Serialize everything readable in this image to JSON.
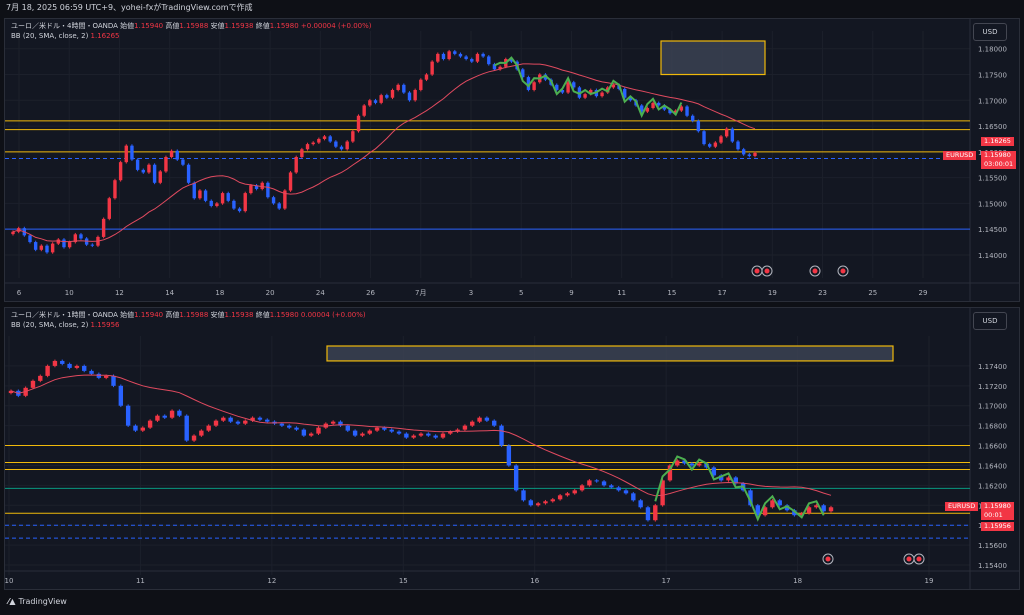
{
  "header": {
    "title": "7月 18, 2025 06:59 UTC+9、yohei-fxがTradingView.comで作成"
  },
  "panel1": {
    "legend": {
      "symbol": "ユーロ／米ドル・4時間・OANDA",
      "o_label": "始値",
      "o": "1.15940",
      "h_label": "高値",
      "h": "1.15988",
      "l_label": "安値",
      "l": "1.15938",
      "c_label": "終値",
      "c": "1.15980",
      "chg": "+0.00004 (+0.00%)",
      "bb_label": "BB (20, SMA, close, 2)",
      "bb_val": "1.16265"
    },
    "currency": "USD",
    "symbol_tag": "EURUSD",
    "price_tag": "1.15980",
    "timer_tag": "03:00:01",
    "bb_tag": "1.16265"
  },
  "panel2": {
    "legend": {
      "symbol": "ユーロ／米ドル・1時間・OANDA",
      "o_label": "始値",
      "o": "1.15940",
      "h_label": "高値",
      "h": "1.15988",
      "l_label": "安値",
      "l": "1.15938",
      "c_label": "終値",
      "c": "1.15980",
      "chg": "0.00004 (+0.00%)",
      "bb_label": "BB (20, SMA, close, 2)",
      "bb_val": "1.15956"
    },
    "currency": "USD",
    "symbol_tag": "EURUSD",
    "price_tag": "1.15980",
    "timer_tag": "00:01",
    "bb_tag": "1.15956"
  },
  "footer": {
    "brand": "TradingView"
  },
  "colors": {
    "up": "#f23645",
    "down": "#2962ff",
    "bb": "#e04a5f",
    "level": "#f0b90b",
    "zigzag": "#4caf50",
    "support": "#2962ff"
  },
  "chart_data": [
    {
      "type": "candlestick",
      "title": "EURUSD 4H",
      "ylim": [
        1.1365,
        1.1815
      ],
      "yticks": [
        "1.18000",
        "1.17500",
        "1.17000",
        "1.16500",
        "1.16000",
        "1.15500",
        "1.15000",
        "1.14500",
        "1.14000"
      ],
      "xticks": [
        "6",
        "10",
        "12",
        "14",
        "18",
        "20",
        "24",
        "26",
        "7月",
        "3",
        "5",
        "9",
        "11",
        "15",
        "17",
        "19",
        "23",
        "25",
        "29"
      ],
      "levels": [
        1.166,
        1.1643,
        1.16
      ],
      "dashed_levels": [
        1.1587
      ],
      "support_levels": [
        1.145
      ],
      "zone": {
        "from": 1.175,
        "to": 1.1815
      },
      "closes": [
        1.1445,
        1.1452,
        1.1438,
        1.1425,
        1.141,
        1.1418,
        1.1405,
        1.1422,
        1.143,
        1.1415,
        1.1425,
        1.144,
        1.1432,
        1.142,
        1.1418,
        1.1435,
        1.147,
        1.151,
        1.1545,
        1.158,
        1.1612,
        1.1585,
        1.1565,
        1.156,
        1.1575,
        1.154,
        1.1562,
        1.159,
        1.1602,
        1.1585,
        1.1575,
        1.154,
        1.151,
        1.1525,
        1.1505,
        1.1495,
        1.15,
        1.152,
        1.1505,
        1.149,
        1.1485,
        1.152,
        1.1535,
        1.1528,
        1.154,
        1.1512,
        1.15,
        1.149,
        1.1525,
        1.156,
        1.159,
        1.1605,
        1.1615,
        1.1618,
        1.1625,
        1.163,
        1.162,
        1.161,
        1.1605,
        1.162,
        1.164,
        1.167,
        1.169,
        1.17,
        1.1695,
        1.171,
        1.1705,
        1.172,
        1.173,
        1.1715,
        1.17,
        1.172,
        1.174,
        1.175,
        1.1775,
        1.179,
        1.178,
        1.1795,
        1.179,
        1.1785,
        1.178,
        1.1775,
        1.179,
        1.1785,
        1.177,
        1.176,
        1.1765,
        1.178,
        1.1775,
        1.176,
        1.1745,
        1.172,
        1.1735,
        1.175,
        1.174,
        1.173,
        1.172,
        1.1715,
        1.1735,
        1.1725,
        1.1705,
        1.1712,
        1.172,
        1.1708,
        1.1715,
        1.1725,
        1.173,
        1.1722,
        1.1705,
        1.17,
        1.169,
        1.1678,
        1.1685,
        1.1695,
        1.169,
        1.1682,
        1.1675,
        1.168,
        1.1688,
        1.167,
        1.166,
        1.164,
        1.1615,
        1.161,
        1.1618,
        1.163,
        1.1645,
        1.162,
        1.1605,
        1.1595,
        1.1592,
        1.1598
      ]
    },
    {
      "type": "candlestick",
      "title": "EURUSD 1H",
      "ylim": [
        1.1535,
        1.176
      ],
      "yticks": [
        "1.17400",
        "1.17200",
        "1.17000",
        "1.16800",
        "1.16600",
        "1.16400",
        "1.16200",
        "1.16000",
        "1.15800",
        "1.15600",
        "1.15400"
      ],
      "xticks": [
        "10",
        "11",
        "12",
        "15",
        "16",
        "17",
        "18",
        "19"
      ],
      "levels": [
        1.166,
        1.1643,
        1.1636,
        1.1592
      ],
      "dashed_levels": [
        1.158,
        1.1567
      ],
      "teal_levels": [
        1.1617
      ],
      "zone": {
        "from": 1.1745,
        "to": 1.176
      },
      "closes": [
        1.1715,
        1.171,
        1.1718,
        1.1725,
        1.173,
        1.174,
        1.1745,
        1.1742,
        1.1738,
        1.174,
        1.1735,
        1.1732,
        1.1728,
        1.173,
        1.172,
        1.17,
        1.168,
        1.1675,
        1.1678,
        1.1685,
        1.169,
        1.1688,
        1.1695,
        1.169,
        1.1665,
        1.167,
        1.1675,
        1.168,
        1.1685,
        1.1688,
        1.1684,
        1.1682,
        1.1685,
        1.1688,
        1.1686,
        1.1684,
        1.1682,
        1.168,
        1.1678,
        1.1676,
        1.167,
        1.1672,
        1.1678,
        1.1682,
        1.1684,
        1.168,
        1.1675,
        1.167,
        1.1672,
        1.1675,
        1.1678,
        1.1676,
        1.1674,
        1.1672,
        1.1668,
        1.167,
        1.1672,
        1.167,
        1.1668,
        1.1672,
        1.1674,
        1.1676,
        1.168,
        1.1684,
        1.1688,
        1.1685,
        1.168,
        1.166,
        1.164,
        1.1615,
        1.1605,
        1.16,
        1.1602,
        1.1604,
        1.1606,
        1.161,
        1.1612,
        1.1615,
        1.162,
        1.1625,
        1.1624,
        1.162,
        1.1618,
        1.1615,
        1.1612,
        1.1605,
        1.1598,
        1.1585,
        1.16,
        1.1625,
        1.164,
        1.1645,
        1.1642,
        1.164,
        1.1642,
        1.1638,
        1.163,
        1.1625,
        1.1628,
        1.1622,
        1.1615,
        1.16,
        1.159,
        1.1598,
        1.1605,
        1.16,
        1.1595,
        1.159,
        1.1592,
        1.1598,
        1.16,
        1.1594,
        1.1598
      ]
    }
  ]
}
